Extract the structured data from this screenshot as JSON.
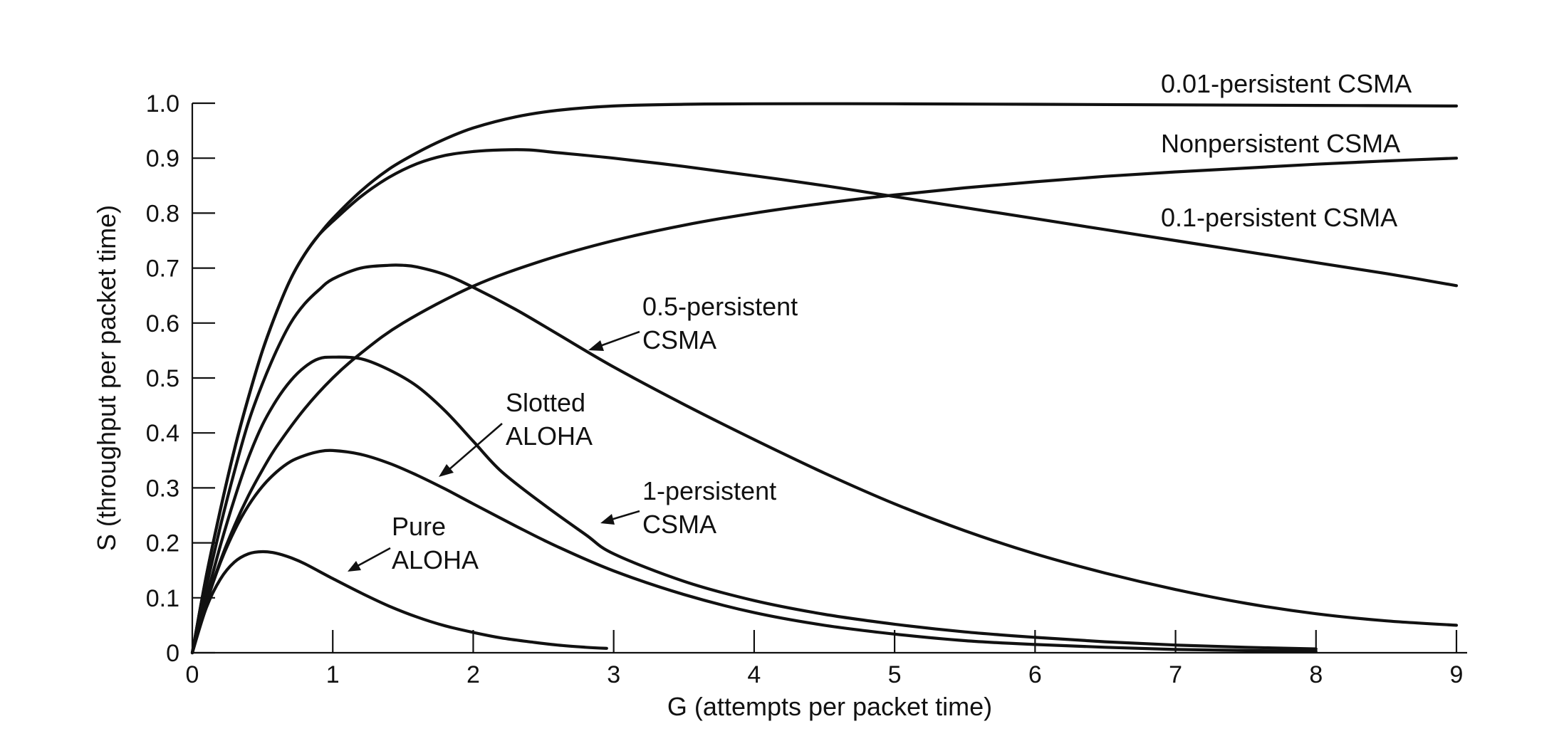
{
  "chart_data": {
    "type": "line",
    "title": "",
    "xlabel": "G (attempts per packet time)",
    "ylabel": "S (throughput per packet time)",
    "xlim": [
      0,
      9
    ],
    "ylim": [
      0,
      1.0
    ],
    "x_ticks": [
      0,
      1,
      2,
      3,
      4,
      5,
      6,
      7,
      8,
      9
    ],
    "x_tick_labels": [
      "0",
      "1",
      "2",
      "3",
      "4",
      "5",
      "6",
      "7",
      "8",
      "9"
    ],
    "y_ticks": [
      0,
      0.1,
      0.2,
      0.3,
      0.4,
      0.5,
      0.6,
      0.7,
      0.8,
      0.9,
      1.0
    ],
    "y_tick_labels": [
      "0",
      "0.1",
      "0.2",
      "0.3",
      "0.4",
      "0.5",
      "0.6",
      "0.7",
      "0.8",
      "0.9",
      "1.0"
    ],
    "grid": false,
    "series": [
      {
        "id": "pure-aloha",
        "name": "Pure ALOHA",
        "label_lines": [
          "Pure",
          "ALOHA"
        ],
        "label_style": "arrow",
        "points": [
          [
            0,
            0
          ],
          [
            0.1,
            0.082
          ],
          [
            0.2,
            0.134
          ],
          [
            0.3,
            0.165
          ],
          [
            0.4,
            0.18
          ],
          [
            0.5,
            0.184
          ],
          [
            0.6,
            0.181
          ],
          [
            0.7,
            0.173
          ],
          [
            0.8,
            0.162
          ],
          [
            1.0,
            0.135
          ],
          [
            1.2,
            0.109
          ],
          [
            1.4,
            0.085
          ],
          [
            1.6,
            0.065
          ],
          [
            1.8,
            0.049
          ],
          [
            2.0,
            0.037
          ],
          [
            2.2,
            0.027
          ],
          [
            2.4,
            0.02
          ],
          [
            2.6,
            0.014
          ],
          [
            2.8,
            0.01
          ],
          [
            2.95,
            0.008
          ]
        ]
      },
      {
        "id": "slotted-aloha",
        "name": "Slotted ALOHA",
        "label_lines": [
          "Slotted",
          "ALOHA"
        ],
        "label_style": "arrow",
        "points": [
          [
            0,
            0
          ],
          [
            0.1,
            0.09
          ],
          [
            0.2,
            0.164
          ],
          [
            0.3,
            0.222
          ],
          [
            0.4,
            0.268
          ],
          [
            0.5,
            0.303
          ],
          [
            0.6,
            0.329
          ],
          [
            0.7,
            0.348
          ],
          [
            0.8,
            0.359
          ],
          [
            0.9,
            0.366
          ],
          [
            1.0,
            0.368
          ],
          [
            1.2,
            0.361
          ],
          [
            1.4,
            0.345
          ],
          [
            1.6,
            0.323
          ],
          [
            1.8,
            0.298
          ],
          [
            2.0,
            0.271
          ],
          [
            2.3,
            0.231
          ],
          [
            2.6,
            0.193
          ],
          [
            3.0,
            0.149
          ],
          [
            3.5,
            0.106
          ],
          [
            4.0,
            0.073
          ],
          [
            4.5,
            0.05
          ],
          [
            5.0,
            0.034
          ],
          [
            5.5,
            0.022
          ],
          [
            6.0,
            0.015
          ],
          [
            6.5,
            0.01
          ],
          [
            7.0,
            0.006
          ],
          [
            7.5,
            0.004
          ],
          [
            8.0,
            0.003
          ]
        ]
      },
      {
        "id": "1-persistent",
        "name": "1-persistent CSMA",
        "label_lines": [
          "1-persistent",
          "CSMA"
        ],
        "label_style": "arrow",
        "points": [
          [
            0,
            0
          ],
          [
            0.1,
            0.1
          ],
          [
            0.2,
            0.195
          ],
          [
            0.3,
            0.28
          ],
          [
            0.4,
            0.355
          ],
          [
            0.5,
            0.415
          ],
          [
            0.6,
            0.46
          ],
          [
            0.7,
            0.495
          ],
          [
            0.8,
            0.52
          ],
          [
            0.9,
            0.535
          ],
          [
            1.0,
            0.538
          ],
          [
            1.2,
            0.535
          ],
          [
            1.4,
            0.515
          ],
          [
            1.6,
            0.485
          ],
          [
            1.8,
            0.44
          ],
          [
            2.0,
            0.385
          ],
          [
            2.2,
            0.33
          ],
          [
            2.5,
            0.27
          ],
          [
            2.8,
            0.215
          ],
          [
            3.0,
            0.18
          ],
          [
            3.5,
            0.13
          ],
          [
            4.0,
            0.095
          ],
          [
            4.5,
            0.07
          ],
          [
            5.0,
            0.052
          ],
          [
            5.5,
            0.038
          ],
          [
            6.0,
            0.028
          ],
          [
            6.5,
            0.02
          ],
          [
            7.0,
            0.014
          ],
          [
            7.5,
            0.01
          ],
          [
            8.0,
            0.007
          ]
        ]
      },
      {
        "id": "0.5-persistent",
        "name": "0.5-persistent CSMA",
        "label_lines": [
          "0.5-persistent",
          "CSMA"
        ],
        "label_style": "arrow",
        "points": [
          [
            0,
            0
          ],
          [
            0.1,
            0.12
          ],
          [
            0.2,
            0.23
          ],
          [
            0.3,
            0.33
          ],
          [
            0.4,
            0.42
          ],
          [
            0.5,
            0.49
          ],
          [
            0.6,
            0.55
          ],
          [
            0.7,
            0.6
          ],
          [
            0.8,
            0.635
          ],
          [
            0.9,
            0.66
          ],
          [
            1.0,
            0.68
          ],
          [
            1.2,
            0.7
          ],
          [
            1.4,
            0.705
          ],
          [
            1.5,
            0.705
          ],
          [
            1.6,
            0.702
          ],
          [
            1.8,
            0.688
          ],
          [
            2.0,
            0.665
          ],
          [
            2.3,
            0.625
          ],
          [
            2.6,
            0.58
          ],
          [
            3.0,
            0.52
          ],
          [
            3.5,
            0.452
          ],
          [
            4.0,
            0.388
          ],
          [
            4.5,
            0.327
          ],
          [
            5.0,
            0.271
          ],
          [
            5.5,
            0.222
          ],
          [
            6.0,
            0.18
          ],
          [
            6.5,
            0.145
          ],
          [
            7.0,
            0.115
          ],
          [
            7.5,
            0.09
          ],
          [
            8.0,
            0.071
          ],
          [
            8.5,
            0.058
          ],
          [
            9.0,
            0.05
          ]
        ]
      },
      {
        "id": "0.1-persistent",
        "name": "0.1-persistent CSMA",
        "label_lines": [
          "0.1-persistent CSMA"
        ],
        "label_style": "end",
        "points": [
          [
            0,
            0
          ],
          [
            0.1,
            0.14
          ],
          [
            0.2,
            0.26
          ],
          [
            0.3,
            0.37
          ],
          [
            0.4,
            0.465
          ],
          [
            0.5,
            0.55
          ],
          [
            0.6,
            0.62
          ],
          [
            0.7,
            0.68
          ],
          [
            0.8,
            0.725
          ],
          [
            0.9,
            0.76
          ],
          [
            1.0,
            0.785
          ],
          [
            1.2,
            0.83
          ],
          [
            1.4,
            0.865
          ],
          [
            1.6,
            0.89
          ],
          [
            1.8,
            0.905
          ],
          [
            2.0,
            0.912
          ],
          [
            2.2,
            0.915
          ],
          [
            2.4,
            0.915
          ],
          [
            2.6,
            0.91
          ],
          [
            3.0,
            0.9
          ],
          [
            3.5,
            0.885
          ],
          [
            4.0,
            0.868
          ],
          [
            4.5,
            0.85
          ],
          [
            5.0,
            0.83
          ],
          [
            5.5,
            0.81
          ],
          [
            6.0,
            0.79
          ],
          [
            6.5,
            0.77
          ],
          [
            7.0,
            0.75
          ],
          [
            7.5,
            0.73
          ],
          [
            8.0,
            0.71
          ],
          [
            8.5,
            0.69
          ],
          [
            9.0,
            0.668
          ]
        ]
      },
      {
        "id": "0.01-persistent",
        "name": "0.01-persistent CSMA",
        "label_lines": [
          "0.01-persistent CSMA"
        ],
        "label_style": "end",
        "points": [
          [
            0,
            0
          ],
          [
            0.1,
            0.14
          ],
          [
            0.2,
            0.26
          ],
          [
            0.3,
            0.37
          ],
          [
            0.4,
            0.465
          ],
          [
            0.5,
            0.55
          ],
          [
            0.6,
            0.62
          ],
          [
            0.7,
            0.68
          ],
          [
            0.8,
            0.725
          ],
          [
            0.9,
            0.76
          ],
          [
            1.0,
            0.79
          ],
          [
            1.2,
            0.84
          ],
          [
            1.4,
            0.88
          ],
          [
            1.6,
            0.91
          ],
          [
            1.8,
            0.935
          ],
          [
            2.0,
            0.955
          ],
          [
            2.3,
            0.975
          ],
          [
            2.6,
            0.987
          ],
          [
            3.0,
            0.995
          ],
          [
            3.5,
            0.998
          ],
          [
            4.0,
            0.999
          ],
          [
            5.0,
            0.999
          ],
          [
            6.0,
            0.998
          ],
          [
            7.0,
            0.997
          ],
          [
            8.0,
            0.996
          ],
          [
            9.0,
            0.995
          ]
        ]
      },
      {
        "id": "nonpersistent",
        "name": "Nonpersistent CSMA",
        "label_lines": [
          "Nonpersistent CSMA"
        ],
        "label_style": "end",
        "points": [
          [
            0,
            0
          ],
          [
            0.1,
            0.09
          ],
          [
            0.2,
            0.167
          ],
          [
            0.3,
            0.231
          ],
          [
            0.4,
            0.286
          ],
          [
            0.5,
            0.333
          ],
          [
            0.6,
            0.375
          ],
          [
            0.8,
            0.444
          ],
          [
            1.0,
            0.5
          ],
          [
            1.2,
            0.545
          ],
          [
            1.5,
            0.6
          ],
          [
            2.0,
            0.667
          ],
          [
            2.5,
            0.714
          ],
          [
            3.0,
            0.75
          ],
          [
            3.5,
            0.778
          ],
          [
            4.0,
            0.8
          ],
          [
            4.5,
            0.818
          ],
          [
            5.0,
            0.833
          ],
          [
            5.5,
            0.846
          ],
          [
            6.0,
            0.857
          ],
          [
            6.5,
            0.867
          ],
          [
            7.0,
            0.875
          ],
          [
            7.5,
            0.882
          ],
          [
            8.0,
            0.889
          ],
          [
            8.5,
            0.895
          ],
          [
            9.0,
            0.9
          ]
        ]
      }
    ]
  }
}
